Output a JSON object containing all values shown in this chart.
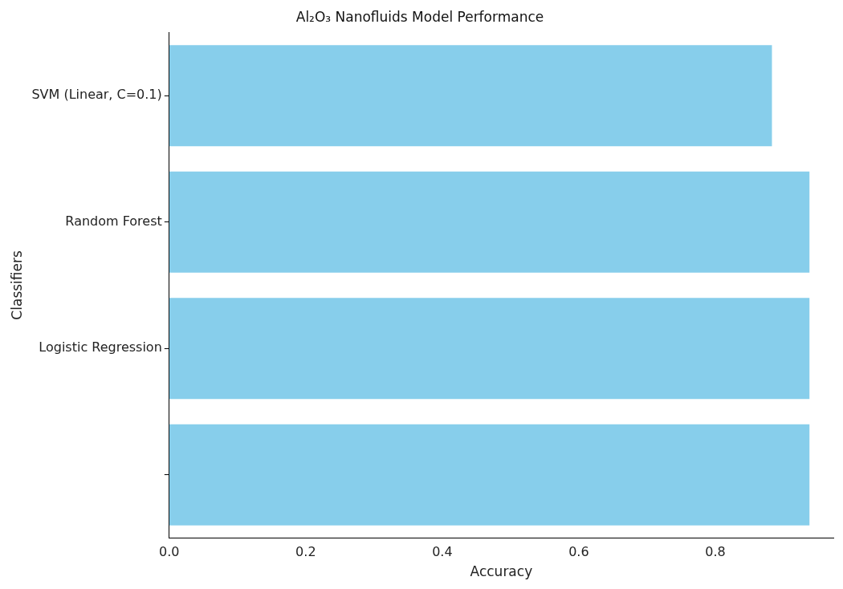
{
  "chart_data": {
    "type": "bar",
    "orientation": "horizontal",
    "title": "Al₂O₃ Nanofluids Model Performance",
    "xlabel": "Accuracy",
    "ylabel": "Classifiers",
    "categories": [
      "SVM (Linear, C=0.1)",
      "Random Forest",
      "Logistic Regression",
      null
    ],
    "values": [
      0.883,
      0.938,
      0.938,
      0.938
    ],
    "color": "#87ceeb",
    "xlim": [
      0,
      0.973
    ],
    "xticks": [
      {
        "value": 0,
        "label": "0.0"
      },
      0.2,
      0.4,
      0.6,
      0.8
    ],
    "grid": false,
    "legend": false
  }
}
